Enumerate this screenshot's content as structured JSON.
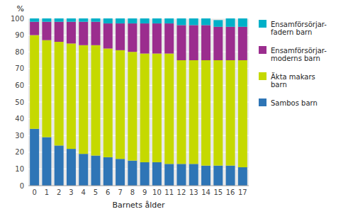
{
  "chart_data": {
    "type": "bar",
    "stacked": true,
    "xlabel": "Barnets ålder",
    "ylabel": "%",
    "categories": [
      "0",
      "1",
      "2",
      "3",
      "4",
      "5",
      "6",
      "7",
      "8",
      "9",
      "10",
      "11",
      "12",
      "13",
      "14",
      "15",
      "16",
      "17"
    ],
    "series": [
      {
        "name": "Sambos barn",
        "color": "#2E75B6",
        "values": [
          34,
          29,
          24,
          22,
          19,
          18,
          17,
          16,
          15,
          14,
          14,
          13,
          13,
          13,
          12,
          12,
          12,
          11
        ]
      },
      {
        "name": "Äkta makars\nbarn",
        "color": "#C5D900",
        "values": [
          56,
          58,
          62,
          63,
          65,
          66,
          65,
          65,
          65,
          65,
          65,
          66,
          62,
          62,
          63,
          63,
          63,
          64
        ]
      },
      {
        "name": "Ensamförsörjar-\nmoderns barn",
        "color": "#9B2D8E",
        "values": [
          8,
          11,
          12,
          13,
          14,
          14,
          15,
          16,
          17,
          18,
          18,
          18,
          21,
          21,
          21,
          20,
          20,
          20
        ]
      },
      {
        "name": "Ensamförsörjar-\nfadern barn",
        "color": "#00B0C8",
        "values": [
          2,
          2,
          2,
          2,
          2,
          2,
          3,
          3,
          3,
          3,
          3,
          3,
          4,
          4,
          4,
          4,
          5,
          5
        ]
      }
    ],
    "ylim": [
      0,
      100
    ],
    "yticks": [
      0,
      10,
      20,
      30,
      40,
      50,
      60,
      70,
      80,
      90,
      100
    ],
    "grid": true,
    "legend": "right"
  }
}
